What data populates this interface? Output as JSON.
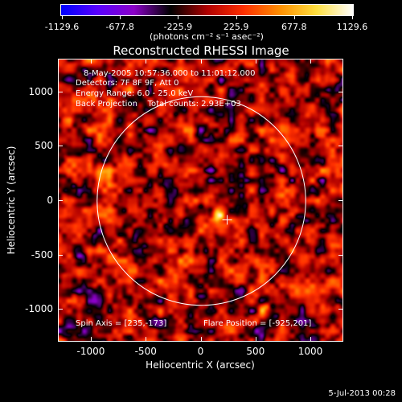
{
  "colorbar": {
    "ticks": [
      "-1129.6",
      "-677.8",
      "-225.9",
      "225.9",
      "677.8",
      "1129.6"
    ],
    "units": "(photons cm⁻² s⁻¹ asec⁻²)",
    "range": [
      -1129.6,
      1129.6
    ],
    "colormap": [
      "#0000ff",
      "#5a00ff",
      "#8c00c8",
      "#000000",
      "#b00000",
      "#ff3000",
      "#ff9000",
      "#ffe040",
      "#ffffff"
    ]
  },
  "title": "Reconstructed RHESSI Image",
  "info": {
    "line1": "8-May-2005 10:57:36.000 to 11:01:12.000",
    "line2": "Detectors: 7F 8F 9F, Att 0",
    "line3": "Energy Range: 6.0 - 25.0 keV",
    "line4": "Back Projection    Total counts: 2.93E+03",
    "spin_axis": "Spin Axis = [235,-173]",
    "flare_position": "Flare Position = [-925,201]"
  },
  "chart_data": {
    "type": "heatmap",
    "title": "Reconstructed RHESSI Image",
    "xlabel": "Heliocentric X (arcsec)",
    "ylabel": "Heliocentric Y (arcsec)",
    "xlim": [
      -1300,
      1300
    ],
    "ylim": [
      -1300,
      1300
    ],
    "xticks": [
      "-1000",
      "-500",
      "0",
      "500",
      "1000"
    ],
    "yticks": [
      "1000",
      "500",
      "0",
      "-500",
      "-1000"
    ],
    "xtick_values": [
      -1000,
      -500,
      0,
      500,
      1000
    ],
    "ytick_values": [
      1000,
      500,
      0,
      -500,
      -1000
    ],
    "solar_limb_radius": 950,
    "spin_axis": [
      235,
      -173
    ],
    "flare_position": [
      -925,
      201
    ]
  },
  "footer": {
    "date": "5-Jul-2013 00:28"
  }
}
